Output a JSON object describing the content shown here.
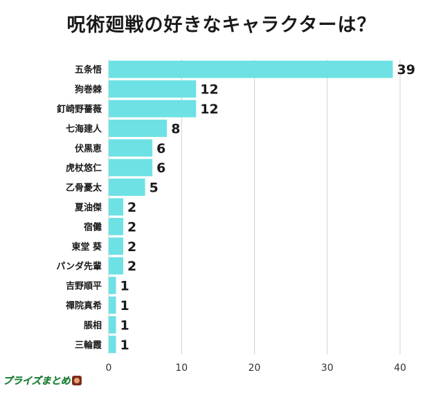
{
  "title": "呪術廻戦の好きなキャラクターは？",
  "watermark": "プライズまとめ",
  "colors": {
    "bar": "#6ee1e4",
    "grid": "#d0d0d0",
    "axis": "#333333"
  },
  "chart_data": {
    "type": "bar",
    "orientation": "horizontal",
    "categories": [
      "五条悟",
      "狗巻棘",
      "釘崎野薔薇",
      "七海建人",
      "伏黒恵",
      "虎杖悠仁",
      "乙骨憂太",
      "夏油傑",
      "宿儺",
      "東堂 葵",
      "パンダ先輩",
      "吉野順平",
      "禪院真希",
      "脹相",
      "三輪霞"
    ],
    "values": [
      39,
      12,
      12,
      8,
      6,
      6,
      5,
      2,
      2,
      2,
      2,
      1,
      1,
      1,
      1
    ],
    "xlim": [
      0,
      40
    ],
    "xticks": [
      0,
      10,
      20,
      30,
      40
    ],
    "grid": true,
    "xlabel": "",
    "ylabel": ""
  }
}
